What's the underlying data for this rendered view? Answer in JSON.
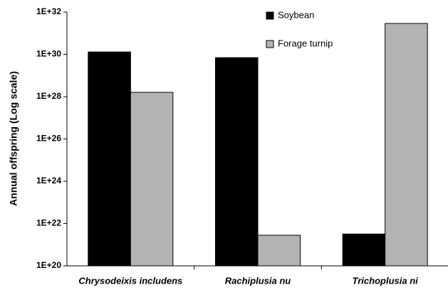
{
  "chart_data": {
    "type": "bar",
    "ylabel": "Annual offspring (Log scale)",
    "categories": [
      "Chrysodeixis includens",
      "Rachiplusia nu",
      "Trichoplusia ni"
    ],
    "series": [
      {
        "name": "Soybean",
        "color": "#000000",
        "values": [
          1.3e+30,
          7e+29,
          3.2e+21
        ]
      },
      {
        "name": "Forage turnip",
        "color": "#b3b3b3",
        "values": [
          1.6e+28,
          2.8e+21,
          2.9e+31
        ]
      }
    ],
    "ylim": [
      1e+20,
      1e+32
    ],
    "yticks": [
      {
        "value": 1e+20,
        "label": "1E+20"
      },
      {
        "value": 1e+22,
        "label": "1E+22"
      },
      {
        "value": 1e+24,
        "label": "1E+24"
      },
      {
        "value": 1e+26,
        "label": "1E+26"
      },
      {
        "value": 1e+28,
        "label": "1E+28"
      },
      {
        "value": 1e+30,
        "label": "1E+30"
      },
      {
        "value": 1e+32,
        "label": "1E+32"
      }
    ],
    "log_scale": true,
    "grid": false,
    "legend": "upper right"
  }
}
